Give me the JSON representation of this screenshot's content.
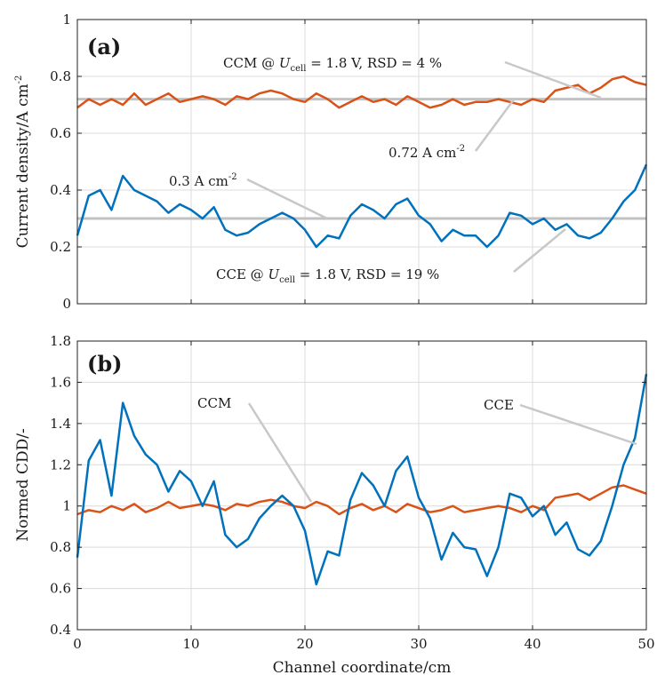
{
  "chart_data": [
    {
      "type": "line",
      "panel_label": "(a)",
      "ylabel": "Current density/A cm",
      "ylabel_sup": "-2",
      "xlim": [
        0,
        50
      ],
      "ylim": [
        0,
        1
      ],
      "xticks": [
        0,
        10,
        20,
        30,
        40,
        50
      ],
      "yticks": [
        0,
        0.2,
        0.4,
        0.6,
        0.8,
        1
      ],
      "ytick_labels": [
        "0",
        "0.2",
        "0.4",
        "0.6",
        "0.8",
        "1"
      ],
      "grid": true,
      "reference_lines": [
        {
          "y": 0.72,
          "label_main": "0.72 A cm",
          "label_sup": "-2",
          "color": "#c2c2c2"
        },
        {
          "y": 0.3,
          "label_main": "0.3 A cm",
          "label_sup": "-2",
          "color": "#c2c2c2"
        }
      ],
      "annotations": [
        {
          "series": "CCM",
          "pre": "CCM @ ",
          "var": "U",
          "var_sub": "cell",
          "post": " = 1.8 V, RSD = 4 %"
        },
        {
          "series": "CCE",
          "pre": "CCE @ ",
          "var": "U",
          "var_sub": "cell",
          "post": " = 1.8 V, RSD = 19 %"
        }
      ],
      "series": [
        {
          "color": "#d95319",
          "x": [
            0,
            1,
            2,
            3,
            4,
            5,
            6,
            7,
            8,
            9,
            10,
            11,
            12,
            13,
            14,
            15,
            16,
            17,
            18,
            19,
            20,
            21,
            22,
            23,
            24,
            25,
            26,
            27,
            28,
            29,
            30,
            31,
            32,
            33,
            34,
            35,
            36,
            37,
            38,
            39,
            40,
            41,
            42,
            43,
            44,
            45,
            46,
            47,
            48,
            49,
            50
          ],
          "values": [
            0.69,
            0.72,
            0.7,
            0.72,
            0.7,
            0.74,
            0.7,
            0.72,
            0.74,
            0.71,
            0.72,
            0.73,
            0.72,
            0.7,
            0.73,
            0.72,
            0.74,
            0.75,
            0.74,
            0.72,
            0.71,
            0.74,
            0.72,
            0.69,
            0.71,
            0.73,
            0.71,
            0.72,
            0.7,
            0.73,
            0.71,
            0.69,
            0.7,
            0.72,
            0.7,
            0.71,
            0.71,
            0.72,
            0.71,
            0.7,
            0.72,
            0.71,
            0.75,
            0.76,
            0.77,
            0.74,
            0.76,
            0.79,
            0.8,
            0.78,
            0.77
          ]
        },
        {
          "color": "#0072bd",
          "x": [
            0,
            1,
            2,
            3,
            4,
            5,
            6,
            7,
            8,
            9,
            10,
            11,
            12,
            13,
            14,
            15,
            16,
            17,
            18,
            19,
            20,
            21,
            22,
            23,
            24,
            25,
            26,
            27,
            28,
            29,
            30,
            31,
            32,
            33,
            34,
            35,
            36,
            37,
            38,
            39,
            40,
            41,
            42,
            43,
            44,
            45,
            46,
            47,
            48,
            49,
            50
          ],
          "values": [
            0.24,
            0.38,
            0.4,
            0.33,
            0.45,
            0.4,
            0.38,
            0.36,
            0.32,
            0.35,
            0.33,
            0.3,
            0.34,
            0.26,
            0.24,
            0.25,
            0.28,
            0.3,
            0.32,
            0.3,
            0.26,
            0.2,
            0.24,
            0.23,
            0.31,
            0.35,
            0.33,
            0.3,
            0.35,
            0.37,
            0.31,
            0.28,
            0.22,
            0.26,
            0.24,
            0.24,
            0.2,
            0.24,
            0.32,
            0.31,
            0.28,
            0.3,
            0.26,
            0.28,
            0.24,
            0.23,
            0.25,
            0.3,
            0.36,
            0.4,
            0.49
          ]
        }
      ]
    },
    {
      "type": "line",
      "panel_label": "(b)",
      "xlabel": "Channel coordinate/cm",
      "ylabel": "Normed CDD/-",
      "xlim": [
        0,
        50
      ],
      "ylim": [
        0.4,
        1.8
      ],
      "xticks": [
        0,
        10,
        20,
        30,
        40,
        50
      ],
      "yticks": [
        0.4,
        0.6,
        0.8,
        1,
        1.2,
        1.4,
        1.6,
        1.8
      ],
      "ytick_labels": [
        "0.4",
        "0.6",
        "0.8",
        "1",
        "1.2",
        "1.4",
        "1.6",
        "1.8"
      ],
      "grid": true,
      "annotations": [
        {
          "series": "CCM",
          "text": "CCM"
        },
        {
          "series": "CCE",
          "text": "CCE"
        }
      ],
      "series": [
        {
          "name": "CCM",
          "color": "#d95319",
          "x": [
            0,
            1,
            2,
            3,
            4,
            5,
            6,
            7,
            8,
            9,
            10,
            11,
            12,
            13,
            14,
            15,
            16,
            17,
            18,
            19,
            20,
            21,
            22,
            23,
            24,
            25,
            26,
            27,
            28,
            29,
            30,
            31,
            32,
            33,
            34,
            35,
            36,
            37,
            38,
            39,
            40,
            41,
            42,
            43,
            44,
            45,
            46,
            47,
            48,
            49,
            50
          ],
          "values": [
            0.96,
            0.98,
            0.97,
            1.0,
            0.98,
            1.01,
            0.97,
            0.99,
            1.02,
            0.99,
            1.0,
            1.01,
            1.0,
            0.98,
            1.01,
            1.0,
            1.02,
            1.03,
            1.02,
            1.0,
            0.99,
            1.02,
            1.0,
            0.96,
            0.99,
            1.01,
            0.98,
            1.0,
            0.97,
            1.01,
            0.99,
            0.97,
            0.98,
            1.0,
            0.97,
            0.98,
            0.99,
            1.0,
            0.99,
            0.97,
            1.0,
            0.98,
            1.04,
            1.05,
            1.06,
            1.03,
            1.06,
            1.09,
            1.1,
            1.08,
            1.06
          ]
        },
        {
          "name": "CCE",
          "color": "#0072bd",
          "x": [
            0,
            1,
            2,
            3,
            4,
            5,
            6,
            7,
            8,
            9,
            10,
            11,
            12,
            13,
            14,
            15,
            16,
            17,
            18,
            19,
            20,
            21,
            22,
            23,
            24,
            25,
            26,
            27,
            28,
            29,
            30,
            31,
            32,
            33,
            34,
            35,
            36,
            37,
            38,
            39,
            40,
            41,
            42,
            43,
            44,
            45,
            46,
            47,
            48,
            49,
            50
          ],
          "values": [
            0.75,
            1.22,
            1.32,
            1.05,
            1.5,
            1.34,
            1.25,
            1.2,
            1.07,
            1.17,
            1.12,
            1.0,
            1.12,
            0.86,
            0.8,
            0.84,
            0.94,
            1.0,
            1.05,
            1.0,
            0.88,
            0.62,
            0.78,
            0.76,
            1.03,
            1.16,
            1.1,
            1.0,
            1.17,
            1.24,
            1.04,
            0.94,
            0.74,
            0.87,
            0.8,
            0.79,
            0.66,
            0.8,
            1.06,
            1.04,
            0.95,
            1.0,
            0.86,
            0.92,
            0.79,
            0.76,
            0.83,
            1.0,
            1.2,
            1.33,
            1.64
          ]
        }
      ]
    }
  ]
}
